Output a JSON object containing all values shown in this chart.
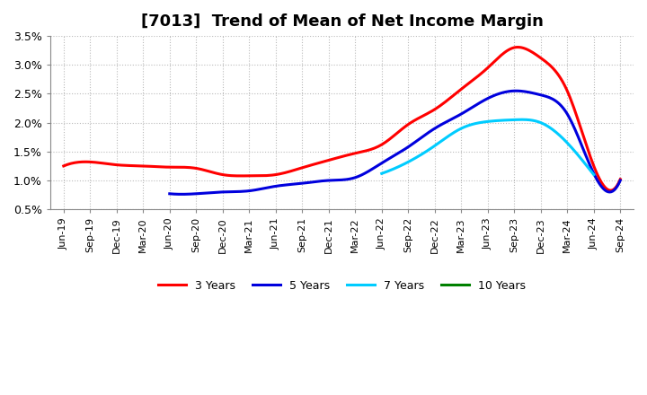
{
  "title": "[7013]  Trend of Mean of Net Income Margin",
  "x_labels": [
    "Jun-19",
    "Sep-19",
    "Dec-19",
    "Mar-20",
    "Jun-20",
    "Sep-20",
    "Dec-20",
    "Mar-21",
    "Jun-21",
    "Sep-21",
    "Dec-21",
    "Mar-22",
    "Jun-22",
    "Sep-22",
    "Dec-22",
    "Mar-23",
    "Jun-23",
    "Sep-23",
    "Dec-23",
    "Mar-24",
    "Jun-24",
    "Sep-24"
  ],
  "series": [
    {
      "label": "3 Years",
      "color": "#ff0000",
      "linewidth": 2.2,
      "data": [
        0.0125,
        0.0132,
        0.0127,
        0.0125,
        0.0123,
        0.0121,
        0.011,
        0.0108,
        0.011,
        0.0122,
        0.0135,
        0.0147,
        0.0162,
        0.0197,
        0.0223,
        0.0258,
        0.0295,
        0.033,
        0.0312,
        0.0255,
        0.0125,
        0.0102
      ]
    },
    {
      "label": "5 Years",
      "color": "#0000dd",
      "linewidth": 2.2,
      "data": [
        null,
        null,
        null,
        null,
        0.0077,
        0.0077,
        0.008,
        0.0082,
        0.009,
        0.0095,
        0.01,
        0.0105,
        0.013,
        0.0158,
        0.019,
        0.0215,
        0.0242,
        0.0255,
        0.0248,
        0.0215,
        0.0112,
        0.01
      ]
    },
    {
      "label": "7 Years",
      "color": "#00ccff",
      "linewidth": 2.2,
      "data": [
        null,
        null,
        null,
        null,
        null,
        null,
        null,
        null,
        null,
        null,
        null,
        null,
        0.0112,
        0.0132,
        0.016,
        0.019,
        0.0202,
        0.0205,
        0.02,
        0.0165,
        0.011,
        null
      ]
    },
    {
      "label": "10 Years",
      "color": "#008000",
      "linewidth": 2.2,
      "data": [
        null,
        null,
        null,
        null,
        null,
        null,
        null,
        null,
        null,
        null,
        null,
        null,
        null,
        null,
        null,
        null,
        null,
        null,
        null,
        null,
        null,
        null
      ]
    }
  ],
  "ylim": [
    0.005,
    0.035
  ],
  "yticks": [
    0.005,
    0.01,
    0.015,
    0.02,
    0.025,
    0.03,
    0.035
  ],
  "ytick_labels": [
    "0.5%",
    "1.0%",
    "1.5%",
    "2.0%",
    "2.5%",
    "3.0%",
    "3.5%"
  ],
  "background_color": "#ffffff",
  "grid_color": "#bbbbbb",
  "title_fontsize": 13,
  "tick_fontsize": 8
}
